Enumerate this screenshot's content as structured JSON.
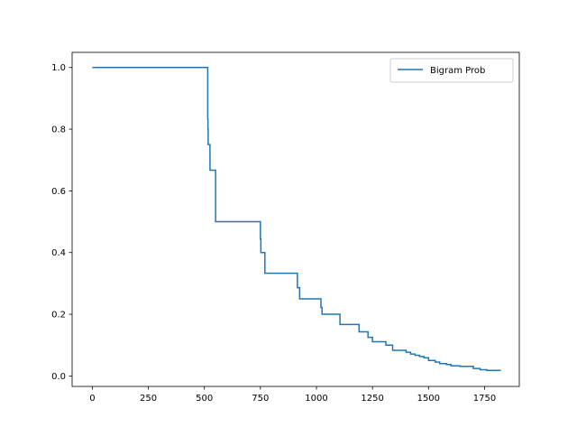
{
  "chart_data": {
    "type": "line",
    "title": "",
    "xlabel": "",
    "ylabel": "",
    "xlim": [
      -90,
      1905
    ],
    "ylim": [
      -0.034,
      1.049
    ],
    "xticks": [
      0,
      250,
      500,
      750,
      1000,
      1250,
      1500,
      1750
    ],
    "yticks": [
      0.0,
      0.2,
      0.4,
      0.6,
      0.8,
      1.0
    ],
    "xtick_labels": [
      "0",
      "250",
      "500",
      "750",
      "1000",
      "1250",
      "1500",
      "1750"
    ],
    "ytick_labels": [
      "0.0",
      "0.2",
      "0.4",
      "0.6",
      "0.8",
      "1.0"
    ],
    "grid": false,
    "legend_position": "top-right",
    "line_color": "#1f77b4",
    "series": [
      {
        "name": "Bigram Prob",
        "step": true,
        "x": [
          0,
          515,
          516,
          517,
          520,
          525,
          550,
          750,
          752,
          755,
          770,
          915,
          918,
          925,
          1010,
          1020,
          1025,
          1105,
          1180,
          1190,
          1230,
          1250,
          1280,
          1310,
          1340,
          1370,
          1400,
          1420,
          1440,
          1460,
          1480,
          1500,
          1530,
          1550,
          1580,
          1600,
          1640,
          1700,
          1730,
          1760,
          1820
        ],
        "y": [
          1.0,
          0.833,
          0.8,
          0.75,
          0.75,
          0.667,
          0.5,
          0.444,
          0.4,
          0.4,
          0.333,
          0.286,
          0.286,
          0.25,
          0.25,
          0.222,
          0.2,
          0.167,
          0.167,
          0.143,
          0.125,
          0.111,
          0.111,
          0.1,
          0.083,
          0.083,
          0.077,
          0.071,
          0.067,
          0.063,
          0.059,
          0.05,
          0.045,
          0.04,
          0.037,
          0.033,
          0.031,
          0.024,
          0.02,
          0.018,
          0.016
        ]
      }
    ]
  }
}
